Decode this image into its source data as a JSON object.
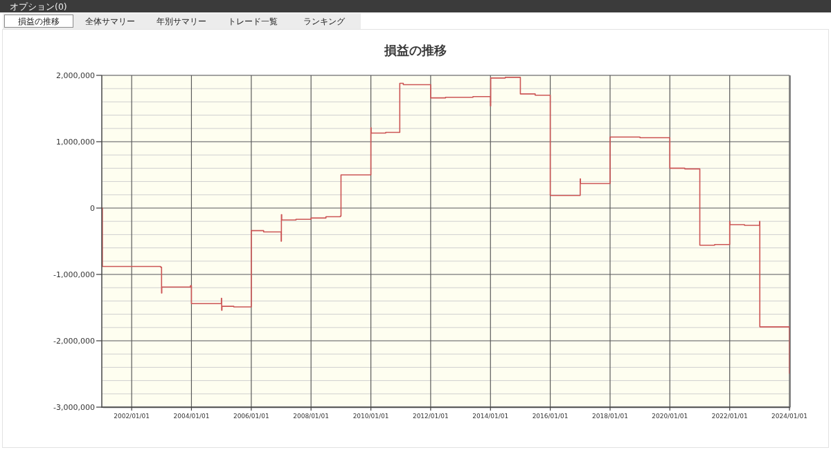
{
  "chart_data": {
    "type": "step",
    "title": "損益の推移",
    "annotations": [
      "オプション(0)",
      "損益の推移",
      "全体サマリー",
      "年別サマリー",
      "トレード一覧",
      "ランキング"
    ],
    "x": [
      "2001-01-01",
      "2001-01-08",
      "2002-12-20",
      "2003-01-01",
      "2003-01-04",
      "2003-12-20",
      "2004-01-01",
      "2005-01-01",
      "2005-01-04",
      "2005-01-08",
      "2005-06-01",
      "2006-01-01",
      "2006-06-01",
      "2007-01-01",
      "2007-01-04",
      "2007-01-08",
      "2007-07-01",
      "2008-01-01",
      "2008-07-01",
      "2008-12-25",
      "2009-01-01",
      "2010-01-01",
      "2010-01-04",
      "2010-07-01",
      "2010-12-20",
      "2011-02-01",
      "2012-01-01",
      "2012-07-01",
      "2013-06-01",
      "2014-01-01",
      "2014-01-04",
      "2014-07-01",
      "2015-01-01",
      "2015-07-01",
      "2016-01-01",
      "2017-01-01",
      "2017-01-04",
      "2018-01-01",
      "2019-01-01",
      "2020-01-01",
      "2020-07-01",
      "2021-01-01",
      "2021-07-01",
      "2022-01-01",
      "2022-01-04",
      "2022-07-01",
      "2023-01-01",
      "2023-01-04",
      "2024-01-01"
    ],
    "series": [
      {
        "color": "#cc5555",
        "values": [
          0,
          -880000,
          -890000,
          -1280000,
          -1190000,
          -1170000,
          -1440000,
          -1360000,
          -1540000,
          -1480000,
          -1490000,
          -340000,
          -360000,
          -500000,
          -100000,
          -180000,
          -170000,
          -150000,
          -130000,
          -120000,
          500000,
          1210000,
          1130000,
          1140000,
          1880000,
          1860000,
          1660000,
          1670000,
          1680000,
          1540000,
          1960000,
          1970000,
          1720000,
          1700000,
          190000,
          440000,
          370000,
          1070000,
          1060000,
          600000,
          590000,
          -560000,
          -550000,
          -200000,
          -250000,
          -260000,
          -200000,
          -1790000,
          -2490000
        ]
      }
    ],
    "xlim": [
      "2001-01-01",
      "2024-01-01"
    ],
    "xticks": [
      {
        "value": "2002-01-01",
        "label": "2002/01/01"
      },
      {
        "value": "2004-01-01",
        "label": "2004/01/01"
      },
      {
        "value": "2006-01-01",
        "label": "2006/01/01"
      },
      {
        "value": "2008-01-01",
        "label": "2008/01/01"
      },
      {
        "value": "2010-01-01",
        "label": "2010/01/01"
      },
      {
        "value": "2012-01-01",
        "label": "2012/01/01"
      },
      {
        "value": "2014-01-01",
        "label": "2014/01/01"
      },
      {
        "value": "2016-01-01",
        "label": "2016/01/01"
      },
      {
        "value": "2018-01-01",
        "label": "2018/01/01"
      },
      {
        "value": "2020-01-01",
        "label": "2020/01/01"
      },
      {
        "value": "2022-01-01",
        "label": "2022/01/01"
      },
      {
        "value": "2024-01-01",
        "label": "2024/01/01"
      }
    ],
    "ylim": [
      -3000000,
      2000000
    ],
    "yticks": [
      {
        "value": -3000000,
        "label": "-3,000,000"
      },
      {
        "value": -2800000,
        "label": null
      },
      {
        "value": -2600000,
        "label": null
      },
      {
        "value": -2400000,
        "label": null
      },
      {
        "value": -2200000,
        "label": null
      },
      {
        "value": -2000000,
        "label": "-2,000,000"
      },
      {
        "value": -1800000,
        "label": null
      },
      {
        "value": -1600000,
        "label": null
      },
      {
        "value": -1400000,
        "label": null
      },
      {
        "value": -1200000,
        "label": null
      },
      {
        "value": -1000000,
        "label": "-1,000,000"
      },
      {
        "value": -800000,
        "label": null
      },
      {
        "value": -600000,
        "label": null
      },
      {
        "value": -400000,
        "label": null
      },
      {
        "value": -200000,
        "label": null
      },
      0,
      {
        "value": 200000,
        "label": null
      },
      {
        "value": 400000,
        "label": null
      },
      {
        "value": 600000,
        "label": null
      },
      {
        "value": 800000,
        "label": null
      },
      {
        "value": 1000000,
        "label": "1,000,000"
      },
      {
        "value": 1200000,
        "label": null
      },
      {
        "value": 1400000,
        "label": null
      },
      {
        "value": 1600000,
        "label": null
      },
      {
        "value": 1800000,
        "label": null
      },
      {
        "value": 2000000,
        "label": "2,000,000"
      }
    ],
    "grid": true
  }
}
